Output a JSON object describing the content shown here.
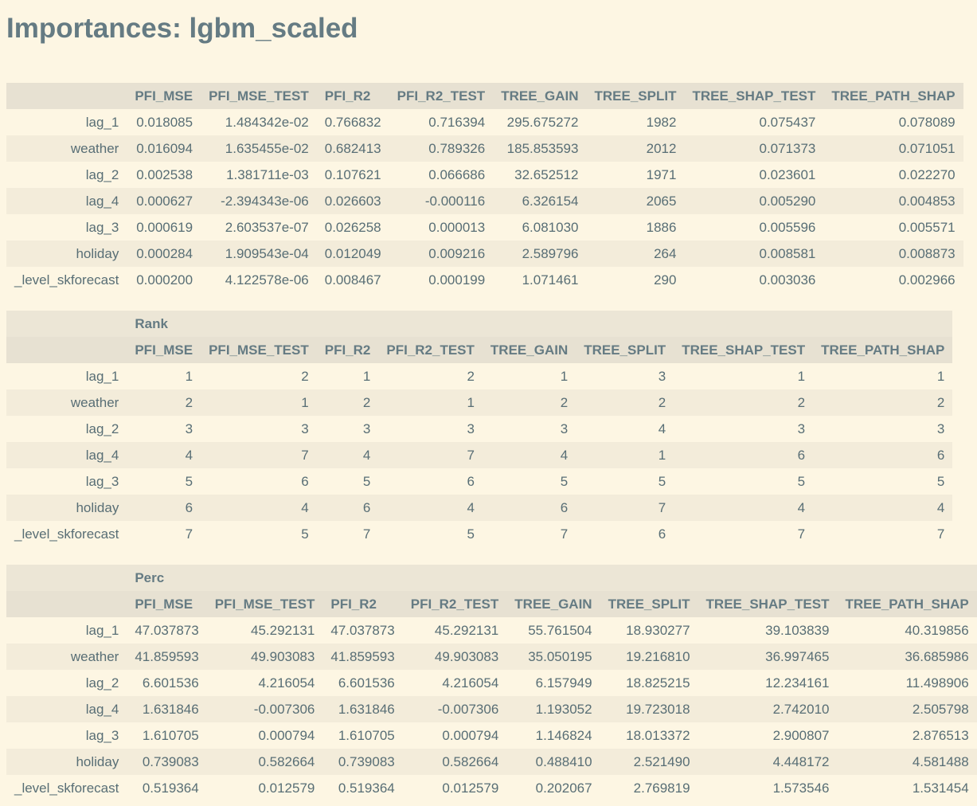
{
  "title": "Importances: lgbm_scaled",
  "columns": [
    "PFI_MSE",
    "PFI_MSE_TEST",
    "PFI_R2",
    "PFI_R2_TEST",
    "TREE_GAIN",
    "TREE_SPLIT",
    "TREE_SHAP_TEST",
    "TREE_PATH_SHAP"
  ],
  "values_table": {
    "col_widths": [],
    "rows": [
      {
        "label": "lag_1",
        "cells": [
          "0.018085",
          "1.484342e-02",
          "0.766832",
          "0.716394",
          "295.675272",
          "1982",
          "0.075437",
          "0.078089"
        ]
      },
      {
        "label": "weather",
        "cells": [
          "0.016094",
          "1.635455e-02",
          "0.682413",
          "0.789326",
          "185.853593",
          "2012",
          "0.071373",
          "0.071051"
        ]
      },
      {
        "label": "lag_2",
        "cells": [
          "0.002538",
          "1.381711e-03",
          "0.107621",
          "0.066686",
          "32.652512",
          "1971",
          "0.023601",
          "0.022270"
        ]
      },
      {
        "label": "lag_4",
        "cells": [
          "0.000627",
          "-2.394343e-06",
          "0.026603",
          "-0.000116",
          "6.326154",
          "2065",
          "0.005290",
          "0.004853"
        ]
      },
      {
        "label": "lag_3",
        "cells": [
          "0.000619",
          "2.603537e-07",
          "0.026258",
          "0.000013",
          "6.081030",
          "1886",
          "0.005596",
          "0.005571"
        ]
      },
      {
        "label": "holiday",
        "cells": [
          "0.000284",
          "1.909543e-04",
          "0.012049",
          "0.009216",
          "2.589796",
          "264",
          "0.008581",
          "0.008873"
        ]
      },
      {
        "label": "_level_skforecast",
        "cells": [
          "0.000200",
          "4.122578e-06",
          "0.008467",
          "0.000199",
          "1.071461",
          "290",
          "0.003036",
          "0.002966"
        ]
      }
    ]
  },
  "rank_table": {
    "group_label": "Rank",
    "rows": [
      {
        "label": "lag_1",
        "cells": [
          "1",
          "2",
          "1",
          "2",
          "1",
          "3",
          "1",
          "1"
        ]
      },
      {
        "label": "weather",
        "cells": [
          "2",
          "1",
          "2",
          "1",
          "2",
          "2",
          "2",
          "2"
        ]
      },
      {
        "label": "lag_2",
        "cells": [
          "3",
          "3",
          "3",
          "3",
          "3",
          "4",
          "3",
          "3"
        ]
      },
      {
        "label": "lag_4",
        "cells": [
          "4",
          "7",
          "4",
          "7",
          "4",
          "1",
          "6",
          "6"
        ]
      },
      {
        "label": "lag_3",
        "cells": [
          "5",
          "6",
          "5",
          "6",
          "5",
          "5",
          "5",
          "5"
        ]
      },
      {
        "label": "holiday",
        "cells": [
          "6",
          "4",
          "6",
          "4",
          "6",
          "7",
          "4",
          "4"
        ]
      },
      {
        "label": "_level_skforecast",
        "cells": [
          "7",
          "5",
          "7",
          "5",
          "7",
          "6",
          "7",
          "7"
        ]
      }
    ]
  },
  "perc_table": {
    "group_label": "Perc",
    "rows": [
      {
        "label": "lag_1",
        "cells": [
          "47.037873",
          "45.292131",
          "47.037873",
          "45.292131",
          "55.761504",
          "18.930277",
          "39.103839",
          "40.319856"
        ]
      },
      {
        "label": "weather",
        "cells": [
          "41.859593",
          "49.903083",
          "41.859593",
          "49.903083",
          "35.050195",
          "19.216810",
          "36.997465",
          "36.685986"
        ]
      },
      {
        "label": "lag_2",
        "cells": [
          "6.601536",
          "4.216054",
          "6.601536",
          "4.216054",
          "6.157949",
          "18.825215",
          "12.234161",
          "11.498906"
        ]
      },
      {
        "label": "lag_4",
        "cells": [
          "1.631846",
          "-0.007306",
          "1.631846",
          "-0.007306",
          "1.193052",
          "19.723018",
          "2.742010",
          "2.505798"
        ]
      },
      {
        "label": "lag_3",
        "cells": [
          "1.610705",
          "0.000794",
          "1.610705",
          "0.000794",
          "1.146824",
          "18.013372",
          "2.900807",
          "2.876513"
        ]
      },
      {
        "label": "holiday",
        "cells": [
          "0.739083",
          "0.582664",
          "0.739083",
          "0.582664",
          "0.488410",
          "2.521490",
          "4.448172",
          "4.581488"
        ]
      },
      {
        "label": "_level_skforecast",
        "cells": [
          "0.519364",
          "0.012579",
          "0.519364",
          "0.012579",
          "0.202067",
          "2.769819",
          "1.573546",
          "1.531454"
        ]
      }
    ]
  }
}
